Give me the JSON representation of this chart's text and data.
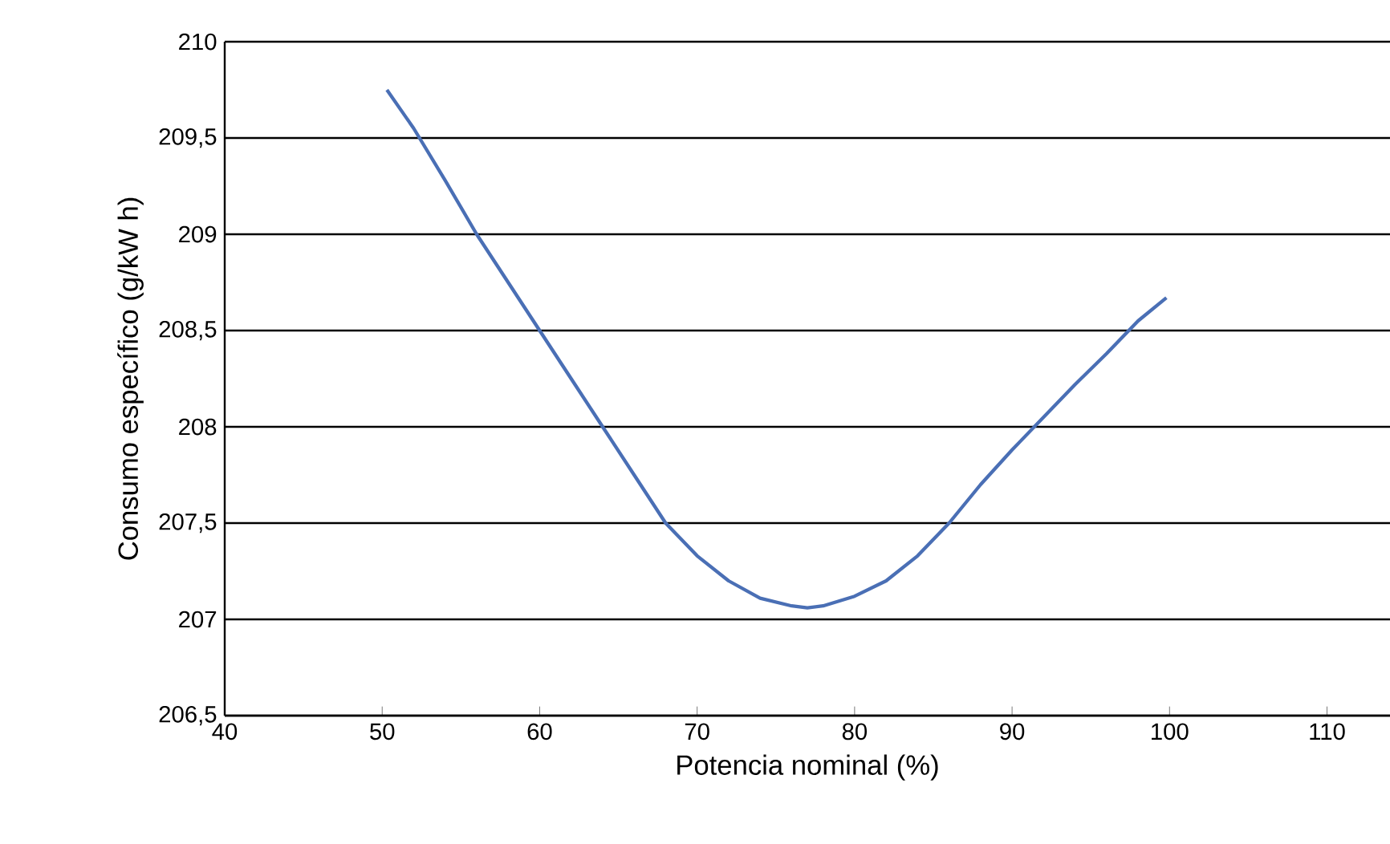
{
  "chart_data": {
    "type": "line",
    "xlabel": "Potencia nominal (%)",
    "ylabel": "Consumo específico (g/kW h)",
    "x": [
      50.3,
      52,
      54,
      56,
      58,
      60,
      62,
      64,
      66,
      68,
      70,
      72,
      74,
      76,
      77,
      78,
      80,
      82,
      84,
      86,
      88,
      90,
      92,
      94,
      96,
      98,
      99.8
    ],
    "series": [
      {
        "color": "#4a6fb5",
        "values": [
          209.75,
          209.55,
          209.28,
          209.0,
          208.75,
          208.5,
          208.25,
          208.0,
          207.75,
          207.5,
          207.33,
          207.2,
          207.11,
          207.07,
          207.06,
          207.07,
          207.12,
          207.2,
          207.33,
          207.5,
          207.7,
          207.88,
          208.05,
          208.22,
          208.38,
          208.55,
          208.67
        ]
      }
    ],
    "xlim": [
      40,
      114
    ],
    "ylim": [
      206.5,
      210
    ],
    "xticks": [
      40,
      50,
      60,
      70,
      80,
      90,
      100,
      110
    ],
    "yticks": [
      {
        "value": 206.5,
        "label": "206,5"
      },
      207,
      {
        "value": 207.5,
        "label": "207,5"
      },
      208,
      {
        "value": 208.5,
        "label": "208,5"
      },
      209,
      {
        "value": 209.5,
        "label": "209,5"
      },
      210
    ],
    "grid": "y",
    "marker": "none",
    "line_style": "solid"
  }
}
